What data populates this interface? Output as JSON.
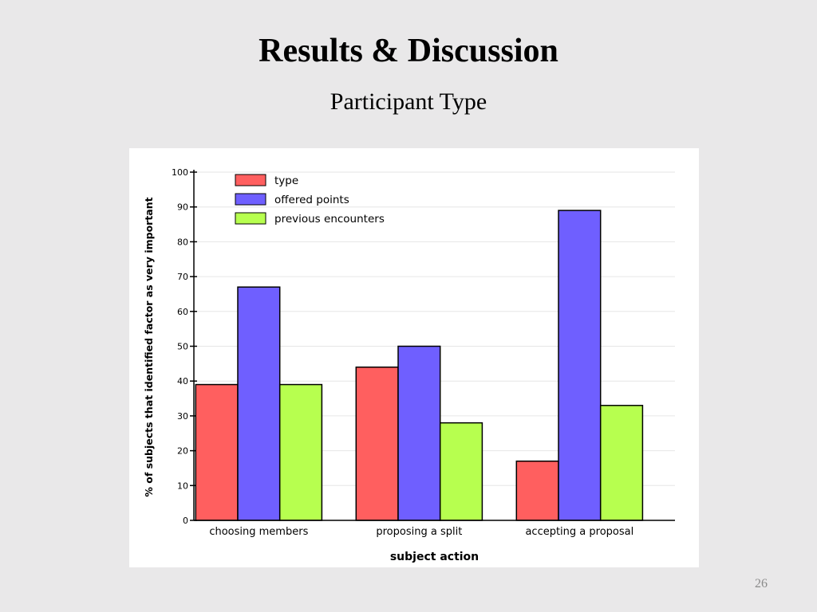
{
  "slide": {
    "title": "Results & Discussion",
    "subtitle": "Participant Type",
    "page_number": "26"
  },
  "chart_data": {
    "type": "bar",
    "categories": [
      "choosing members",
      "proposing a split",
      "accepting a proposal"
    ],
    "series": [
      {
        "name": "type",
        "values": [
          39,
          44,
          17
        ],
        "color": "#ff5f5f"
      },
      {
        "name": "offered points",
        "values": [
          67,
          50,
          89
        ],
        "color": "#6f5fff"
      },
      {
        "name": "previous encounters",
        "values": [
          39,
          28,
          33
        ],
        "color": "#b7ff4f"
      }
    ],
    "xlabel": "subject action",
    "ylabel": "% of subjects that identified factor as very important",
    "ylim": [
      0,
      100
    ],
    "yticks": [
      0,
      10,
      20,
      30,
      40,
      50,
      60,
      70,
      80,
      90,
      100
    ],
    "grid": true,
    "legend_position": "top-left"
  }
}
